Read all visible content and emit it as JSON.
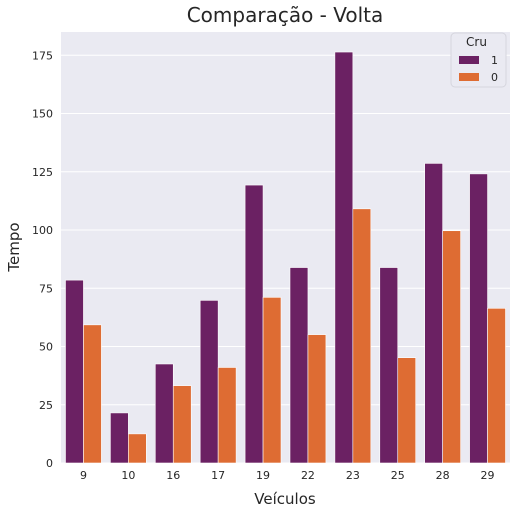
{
  "chart_data": {
    "type": "bar",
    "title": "Comparação - Volta",
    "xlabel": "Veículos",
    "ylabel": "Tempo",
    "categories": [
      "9",
      "10",
      "16",
      "17",
      "19",
      "22",
      "23",
      "25",
      "28",
      "29"
    ],
    "series": [
      {
        "name": "1",
        "color": "#6b2163",
        "values": [
          78.5,
          21.5,
          42.5,
          69.8,
          119.3,
          83.9,
          176.4,
          83.9,
          128.6,
          124.1
        ]
      },
      {
        "name": "0",
        "color": "#de6c33",
        "values": [
          59.3,
          12.5,
          33.2,
          41.0,
          71.1,
          55.1,
          109.1,
          45.2,
          99.7,
          66.4
        ]
      }
    ],
    "ylim": [
      0,
      185
    ],
    "yticks": [
      0,
      25,
      50,
      75,
      100,
      125,
      150,
      175
    ],
    "grid": true,
    "background": "#eaeaf2",
    "legend": {
      "title": "Cru",
      "position": "top-right"
    }
  }
}
